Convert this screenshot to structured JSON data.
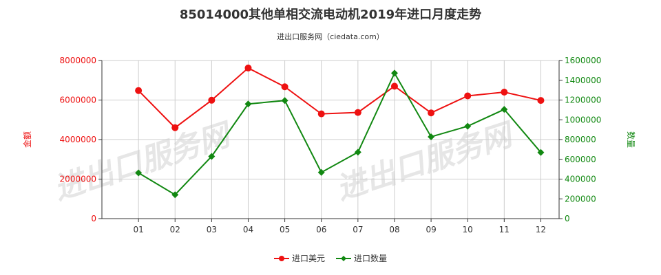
{
  "header": {
    "title": "85014000其他单相交流电动机2019年进口月度走势",
    "subtitle": "进出口服务网（ciedata.com）"
  },
  "watermark": {
    "text": "进出口服务网"
  },
  "colors": {
    "value_series": "#ee1111",
    "quantity_series": "#118811",
    "grid": "#cccccc",
    "axis": "#333333"
  },
  "chart_data": {
    "type": "line",
    "categories": [
      "01",
      "02",
      "03",
      "04",
      "05",
      "06",
      "07",
      "08",
      "09",
      "10",
      "11",
      "12"
    ],
    "series": [
      {
        "name": "进口美元",
        "axis": "left",
        "values": [
          6480000,
          4600000,
          5990000,
          7620000,
          6670000,
          5300000,
          5370000,
          6700000,
          5350000,
          6210000,
          6400000,
          5980000
        ]
      },
      {
        "name": "进口数量",
        "axis": "right",
        "values": [
          463000,
          242000,
          630000,
          1160000,
          1195000,
          468000,
          672000,
          1472000,
          828000,
          935000,
          1105000,
          670000
        ]
      }
    ],
    "left_axis": {
      "label": "金额",
      "ylim": [
        0,
        8000000
      ],
      "ticks": [
        "0",
        "2000000",
        "4000000",
        "6000000",
        "8000000"
      ]
    },
    "right_axis": {
      "label": "数量",
      "ylim": [
        0,
        1600000
      ],
      "ticks": [
        "0",
        "200000",
        "400000",
        "600000",
        "800000",
        "1000000",
        "1200000",
        "1400000",
        "1600000"
      ]
    },
    "grid": true,
    "legend_position": "bottom-center"
  }
}
